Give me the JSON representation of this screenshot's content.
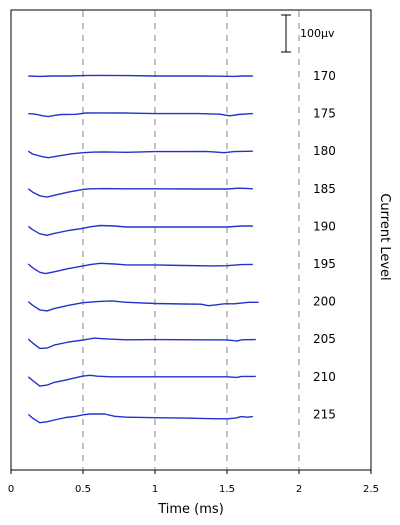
{
  "chart_data": {
    "type": "line",
    "title": "",
    "xlabel": "Time (ms)",
    "ylabel": "Current Level",
    "xlim": [
      0,
      2.5
    ],
    "x_ticks": [
      0,
      0.5,
      1,
      1.5,
      2,
      2.5
    ],
    "x_tick_labels": [
      "0",
      "0.5",
      "1",
      "1.5",
      "2",
      "2.5"
    ],
    "vertical_gridlines_at": [
      0.5,
      1,
      1.5,
      2
    ],
    "grid_style": "dashed vertical lines",
    "scale_bar_label": "100μv",
    "scale_bar_value_uV": 100,
    "line_color": "#2233cc",
    "series": [
      {
        "name": "170",
        "baseline": 0,
        "values": [
          [
            0.12,
            0
          ],
          [
            0.2,
            2
          ],
          [
            0.28,
            0
          ],
          [
            0.4,
            0
          ],
          [
            0.5,
            -2
          ],
          [
            0.6,
            -3
          ],
          [
            0.8,
            -2
          ],
          [
            1.0,
            0
          ],
          [
            1.3,
            0
          ],
          [
            1.45,
            1
          ],
          [
            1.55,
            2
          ],
          [
            1.6,
            0
          ],
          [
            1.68,
            0
          ]
        ]
      },
      {
        "name": "175",
        "baseline": 0,
        "values": [
          [
            0.12,
            0
          ],
          [
            0.17,
            3
          ],
          [
            0.22,
            12
          ],
          [
            0.26,
            16
          ],
          [
            0.3,
            10
          ],
          [
            0.35,
            5
          ],
          [
            0.45,
            4
          ],
          [
            0.52,
            -3
          ],
          [
            0.6,
            -4
          ],
          [
            0.8,
            -3
          ],
          [
            1.0,
            0
          ],
          [
            1.3,
            0
          ],
          [
            1.45,
            3
          ],
          [
            1.52,
            12
          ],
          [
            1.58,
            5
          ],
          [
            1.68,
            0
          ]
        ]
      },
      {
        "name": "180",
        "baseline": 0,
        "values": [
          [
            0.12,
            0
          ],
          [
            0.15,
            15
          ],
          [
            0.22,
            30
          ],
          [
            0.26,
            35
          ],
          [
            0.32,
            27
          ],
          [
            0.42,
            14
          ],
          [
            0.5,
            8
          ],
          [
            0.58,
            5
          ],
          [
            0.65,
            4
          ],
          [
            0.8,
            6
          ],
          [
            1.0,
            2
          ],
          [
            1.2,
            2
          ],
          [
            1.35,
            1
          ],
          [
            1.42,
            5
          ],
          [
            1.48,
            8
          ],
          [
            1.55,
            2
          ],
          [
            1.68,
            0
          ]
        ]
      },
      {
        "name": "185",
        "baseline": 0,
        "values": [
          [
            0.12,
            0
          ],
          [
            0.15,
            18
          ],
          [
            0.2,
            38
          ],
          [
            0.25,
            45
          ],
          [
            0.3,
            35
          ],
          [
            0.4,
            18
          ],
          [
            0.5,
            3
          ],
          [
            0.55,
            0
          ],
          [
            0.65,
            -1
          ],
          [
            0.8,
            0
          ],
          [
            1.0,
            0
          ],
          [
            1.3,
            1
          ],
          [
            1.5,
            1
          ],
          [
            1.58,
            -3
          ],
          [
            1.64,
            -2
          ],
          [
            1.68,
            0
          ]
        ]
      },
      {
        "name": "190",
        "baseline": 0,
        "values": [
          [
            0.12,
            0
          ],
          [
            0.15,
            18
          ],
          [
            0.2,
            40
          ],
          [
            0.25,
            48
          ],
          [
            0.3,
            38
          ],
          [
            0.4,
            22
          ],
          [
            0.5,
            10
          ],
          [
            0.55,
            2
          ],
          [
            0.62,
            -5
          ],
          [
            0.72,
            -2
          ],
          [
            0.8,
            3
          ],
          [
            1.0,
            3
          ],
          [
            1.2,
            3
          ],
          [
            1.5,
            3
          ],
          [
            1.6,
            -2
          ],
          [
            1.68,
            -2
          ]
        ]
      },
      {
        "name": "195",
        "baseline": 0,
        "values": [
          [
            0.12,
            0
          ],
          [
            0.15,
            20
          ],
          [
            0.2,
            45
          ],
          [
            0.24,
            52
          ],
          [
            0.3,
            42
          ],
          [
            0.4,
            25
          ],
          [
            0.5,
            10
          ],
          [
            0.55,
            3
          ],
          [
            0.62,
            -4
          ],
          [
            0.72,
            0
          ],
          [
            0.8,
            5
          ],
          [
            1.0,
            5
          ],
          [
            1.2,
            8
          ],
          [
            1.4,
            10
          ],
          [
            1.5,
            9
          ],
          [
            1.6,
            3
          ],
          [
            1.68,
            2
          ]
        ]
      },
      {
        "name": "200",
        "baseline": 0,
        "values": [
          [
            0.12,
            0
          ],
          [
            0.15,
            20
          ],
          [
            0.2,
            45
          ],
          [
            0.25,
            50
          ],
          [
            0.3,
            38
          ],
          [
            0.4,
            20
          ],
          [
            0.5,
            6
          ],
          [
            0.6,
            0
          ],
          [
            0.7,
            -4
          ],
          [
            0.8,
            4
          ],
          [
            1.0,
            10
          ],
          [
            1.2,
            13
          ],
          [
            1.32,
            14
          ],
          [
            1.37,
            22
          ],
          [
            1.42,
            18
          ],
          [
            1.48,
            12
          ],
          [
            1.55,
            12
          ],
          [
            1.65,
            4
          ],
          [
            1.72,
            4
          ]
        ]
      },
      {
        "name": "205",
        "baseline": 0,
        "values": [
          [
            0.12,
            0
          ],
          [
            0.15,
            20
          ],
          [
            0.2,
            50
          ],
          [
            0.25,
            48
          ],
          [
            0.3,
            32
          ],
          [
            0.4,
            15
          ],
          [
            0.5,
            5
          ],
          [
            0.58,
            -6
          ],
          [
            0.62,
            -3
          ],
          [
            0.7,
            0
          ],
          [
            0.8,
            3
          ],
          [
            1.0,
            2
          ],
          [
            1.3,
            3
          ],
          [
            1.5,
            4
          ],
          [
            1.57,
            10
          ],
          [
            1.6,
            3
          ],
          [
            1.7,
            2
          ]
        ]
      },
      {
        "name": "210",
        "baseline": 0,
        "values": [
          [
            0.12,
            0
          ],
          [
            0.15,
            20
          ],
          [
            0.2,
            50
          ],
          [
            0.25,
            45
          ],
          [
            0.3,
            30
          ],
          [
            0.38,
            18
          ],
          [
            0.45,
            5
          ],
          [
            0.5,
            -4
          ],
          [
            0.55,
            -8
          ],
          [
            0.6,
            -3
          ],
          [
            0.7,
            0
          ],
          [
            0.8,
            0
          ],
          [
            1.0,
            0
          ],
          [
            1.3,
            0
          ],
          [
            1.5,
            0
          ],
          [
            1.57,
            3
          ],
          [
            1.6,
            -2
          ],
          [
            1.7,
            -2
          ]
        ]
      },
      {
        "name": "215",
        "baseline": 0,
        "values": [
          [
            0.12,
            0
          ],
          [
            0.15,
            20
          ],
          [
            0.2,
            45
          ],
          [
            0.25,
            40
          ],
          [
            0.3,
            30
          ],
          [
            0.38,
            17
          ],
          [
            0.45,
            10
          ],
          [
            0.5,
            2
          ],
          [
            0.55,
            -2
          ],
          [
            0.65,
            -2
          ],
          [
            0.72,
            10
          ],
          [
            0.8,
            15
          ],
          [
            1.0,
            18
          ],
          [
            1.2,
            20
          ],
          [
            1.4,
            23
          ],
          [
            1.5,
            24
          ],
          [
            1.56,
            20
          ],
          [
            1.6,
            12
          ],
          [
            1.64,
            15
          ],
          [
            1.68,
            12
          ]
        ]
      }
    ]
  }
}
